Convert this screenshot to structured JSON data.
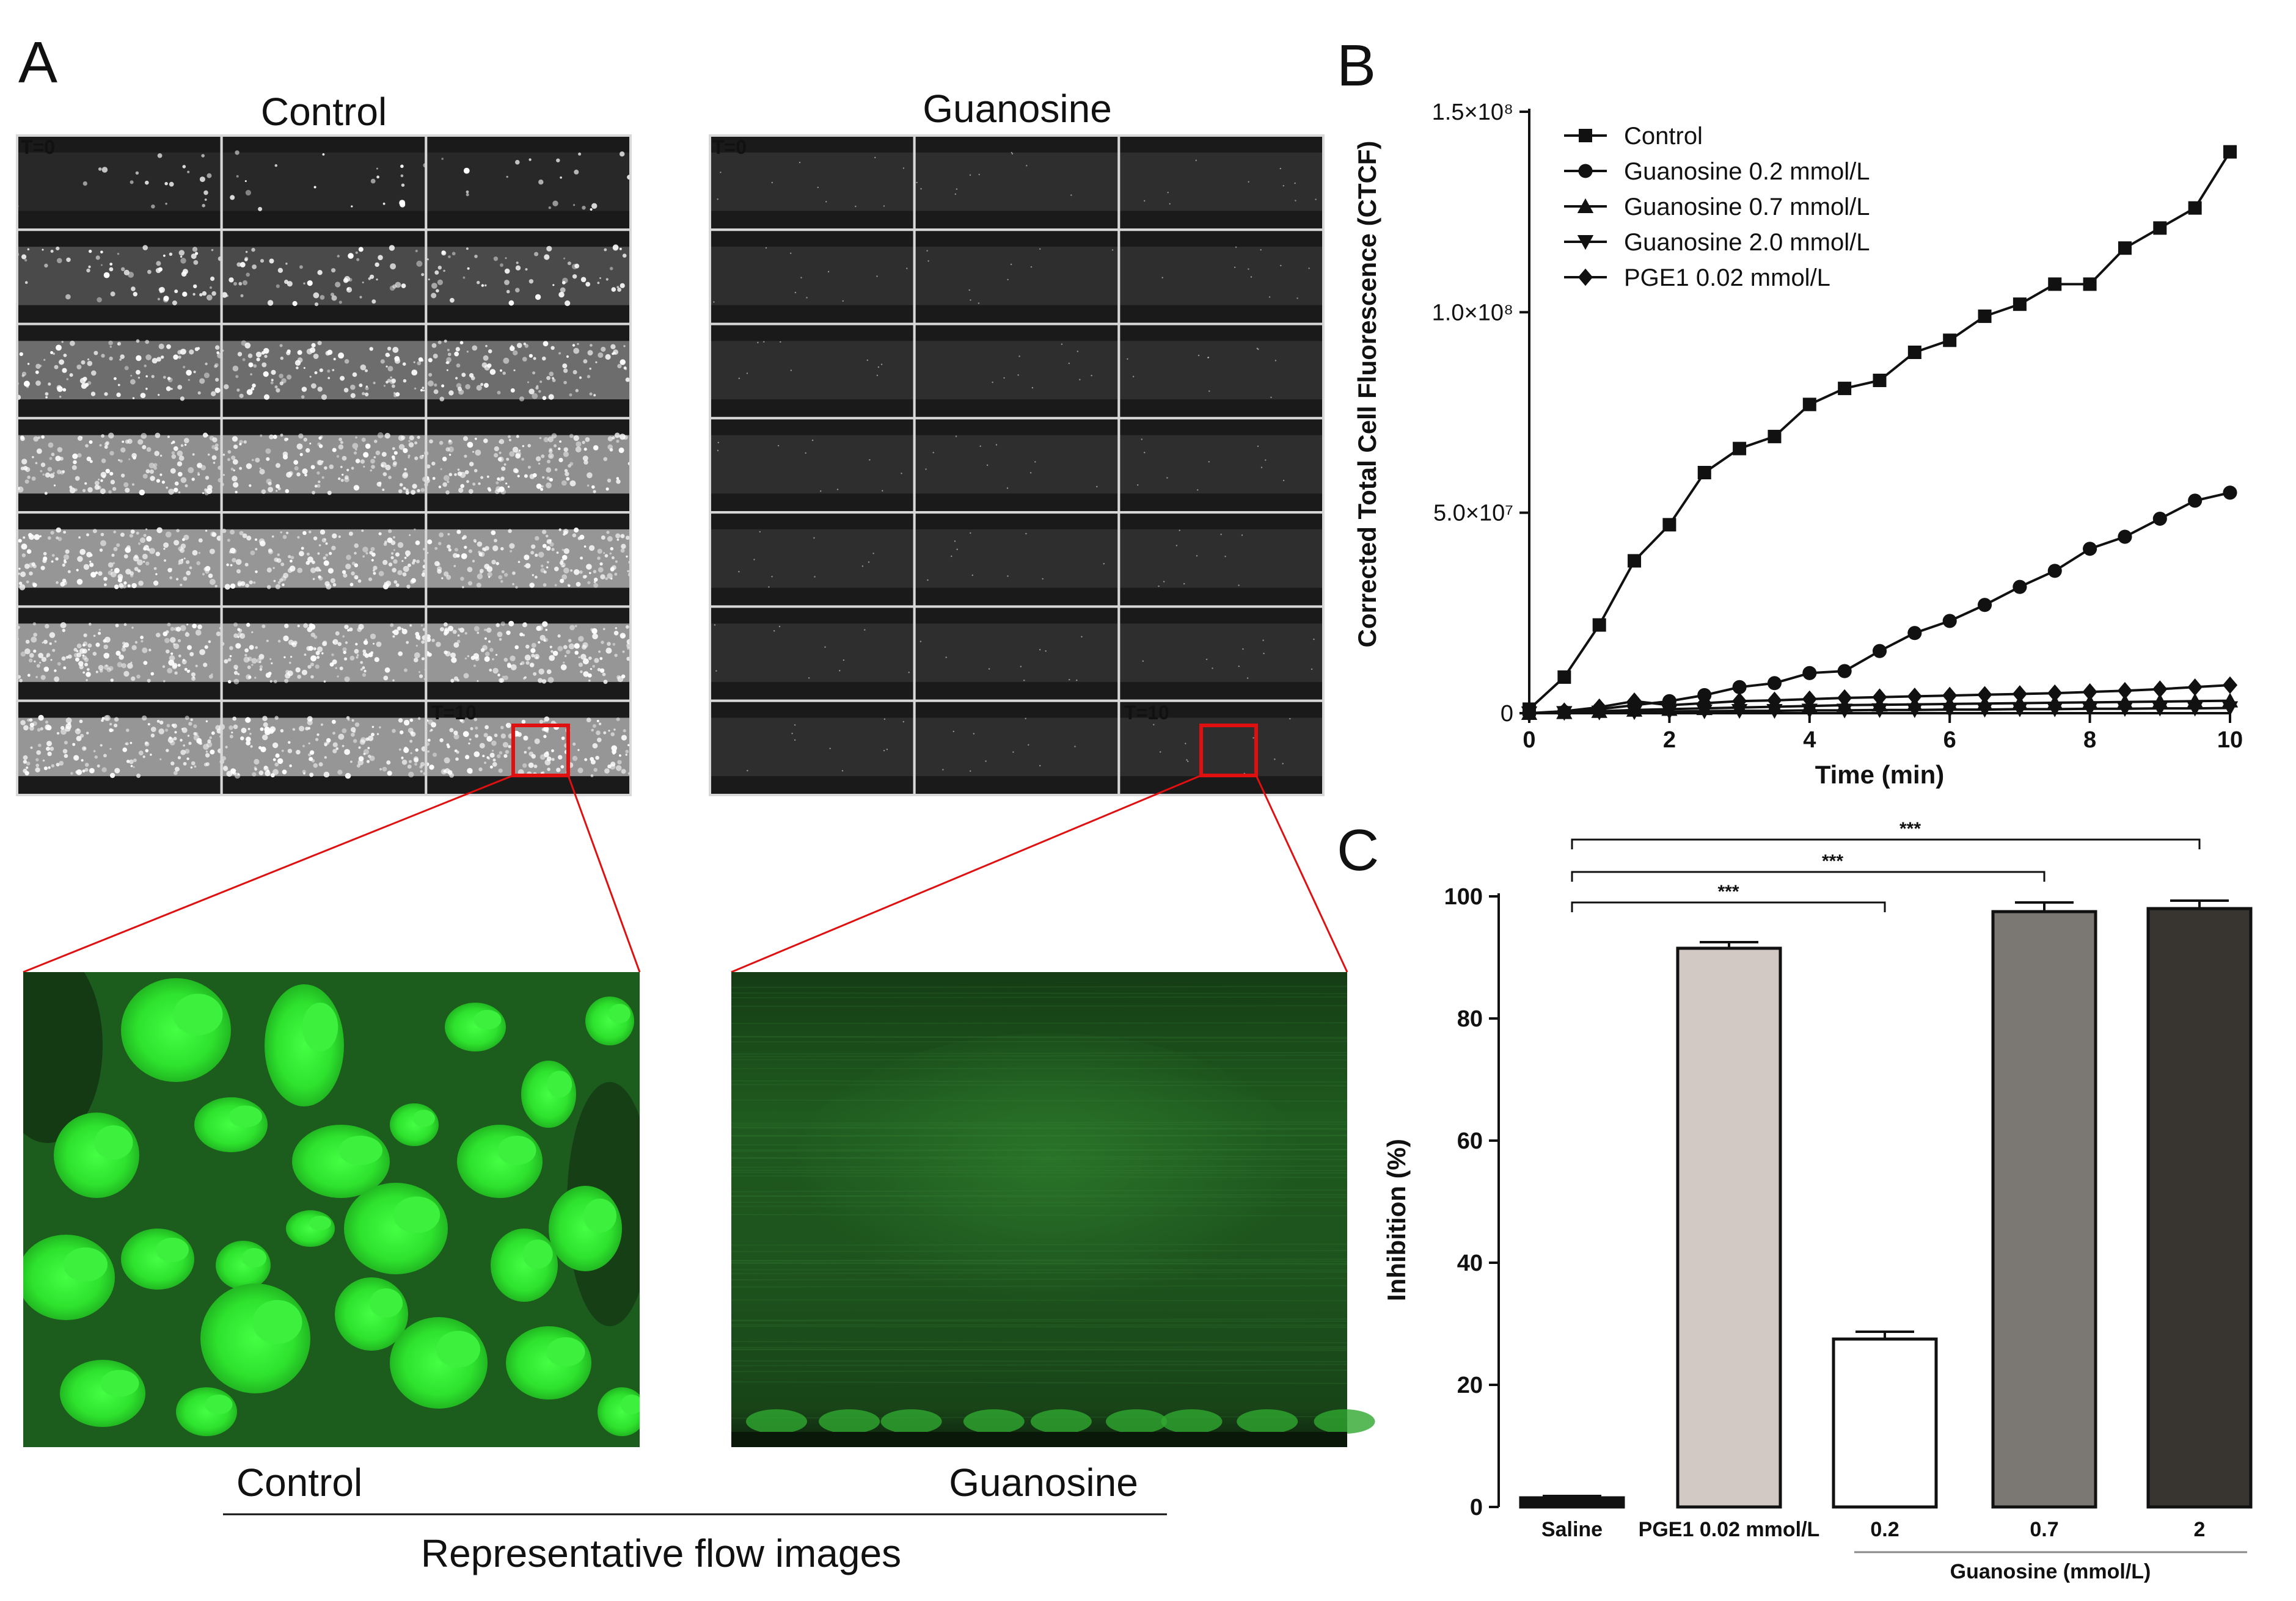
{
  "panels": {
    "A": {
      "letter": "A",
      "control_title": "Control",
      "guanosine_title": "Guanosine",
      "t0_label": "T=0",
      "t10_label": "T=10",
      "zoom_control_label": "Control",
      "zoom_guanosine_label": "Guanosine",
      "caption": "Representative flow images",
      "frame_rows": 7,
      "frame_cols": 3,
      "colors": {
        "zoom_green": "#2ee22e",
        "zoom_dark_green": "#1f5a1f",
        "highlight_box": "#e01010"
      }
    },
    "B": {
      "letter": "B"
    },
    "C": {
      "letter": "C"
    }
  },
  "chart_data": [
    {
      "type": "line",
      "panel": "B",
      "title": "",
      "xlabel": "Time (min)",
      "ylabel": "Corrected Total Cell Fluorescence (CTCF)",
      "xlim": [
        0,
        10
      ],
      "ylim": [
        0,
        150000000
      ],
      "xticks": [
        0,
        2,
        4,
        6,
        8,
        10
      ],
      "xtick_labels": [
        "0",
        "2",
        "4",
        "6",
        "8",
        "10"
      ],
      "yticks": [
        0,
        50000000,
        100000000,
        150000000
      ],
      "ytick_labels": [
        "0",
        "5.0×10⁷",
        "1.0×10⁸",
        "1.5×10⁸"
      ],
      "legend_position": "top-left",
      "x": [
        0,
        0.5,
        1,
        1.5,
        2,
        2.5,
        3,
        3.5,
        4,
        4.5,
        5,
        5.5,
        6,
        6.5,
        7,
        7.5,
        8,
        8.5,
        9,
        9.5,
        10
      ],
      "series": [
        {
          "name": "Control",
          "marker": "square",
          "values": [
            1000000,
            9000000,
            22000000,
            38000000,
            47000000,
            60000000,
            66000000,
            69000000,
            77000000,
            81000000,
            83000000,
            90000000,
            93000000,
            99000000,
            102000000,
            107000000,
            107000000,
            116000000,
            121000000,
            126000000,
            140000000
          ]
        },
        {
          "name": "Guanosine 0.2 mmol/L",
          "marker": "circle",
          "values": [
            0,
            300000,
            1000000,
            2000000,
            3000000,
            4500000,
            6500000,
            7500000,
            10000000,
            10500000,
            15500000,
            20000000,
            23000000,
            27000000,
            31500000,
            35500000,
            41000000,
            44000000,
            48500000,
            53000000,
            55000000
          ]
        },
        {
          "name": "Guanosine 0.7 mmol/L",
          "marker": "triangle-up",
          "values": [
            0,
            200000,
            500000,
            800000,
            1000000,
            1200000,
            1400000,
            1600000,
            1800000,
            2000000,
            2100000,
            2200000,
            2300000,
            2400000,
            2500000,
            2600000,
            2700000,
            2800000,
            2900000,
            3000000,
            3100000
          ]
        },
        {
          "name": "Guanosine 2.0 mmol/L",
          "marker": "triangle-down",
          "values": [
            0,
            100000,
            200000,
            300000,
            400000,
            500000,
            600000,
            600000,
            700000,
            700000,
            800000,
            800000,
            900000,
            900000,
            1000000,
            1000000,
            1100000,
            1100000,
            1200000,
            1200000,
            1300000
          ]
        },
        {
          "name": "PGE1 0.02 mmol/L",
          "marker": "diamond",
          "values": [
            0,
            500000,
            1500000,
            3000000,
            2000000,
            2500000,
            3000000,
            3200000,
            3500000,
            3800000,
            4000000,
            4200000,
            4400000,
            4600000,
            4800000,
            5000000,
            5300000,
            5600000,
            6000000,
            6500000,
            7000000
          ]
        }
      ]
    },
    {
      "type": "bar",
      "panel": "C",
      "title": "",
      "xlabel": "",
      "ylabel": "Inhibition (%)",
      "ylim": [
        0,
        100
      ],
      "yticks": [
        0,
        20,
        40,
        60,
        80,
        100
      ],
      "ytick_labels": [
        "0",
        "20",
        "40",
        "60",
        "80",
        "100"
      ],
      "categories": [
        "Saline",
        "PGE1 0.02 mmol/L",
        "0.2",
        "0.7",
        "2"
      ],
      "values": [
        1.5,
        91.5,
        27.5,
        97.5,
        98
      ],
      "errors": [
        0.3,
        1.0,
        1.2,
        1.5,
        1.3
      ],
      "bar_colors": [
        "#111111",
        "#d3c9c4",
        "#ffffff",
        "#7b7773",
        "#38342f"
      ],
      "group_label": "Guanosine (mmol/L)",
      "significance": [
        {
          "from": "Saline",
          "to": "0.2",
          "label": "***"
        },
        {
          "from": "Saline",
          "to": "0.7",
          "label": "***"
        },
        {
          "from": "Saline",
          "to": "2",
          "label": "***"
        }
      ]
    }
  ]
}
